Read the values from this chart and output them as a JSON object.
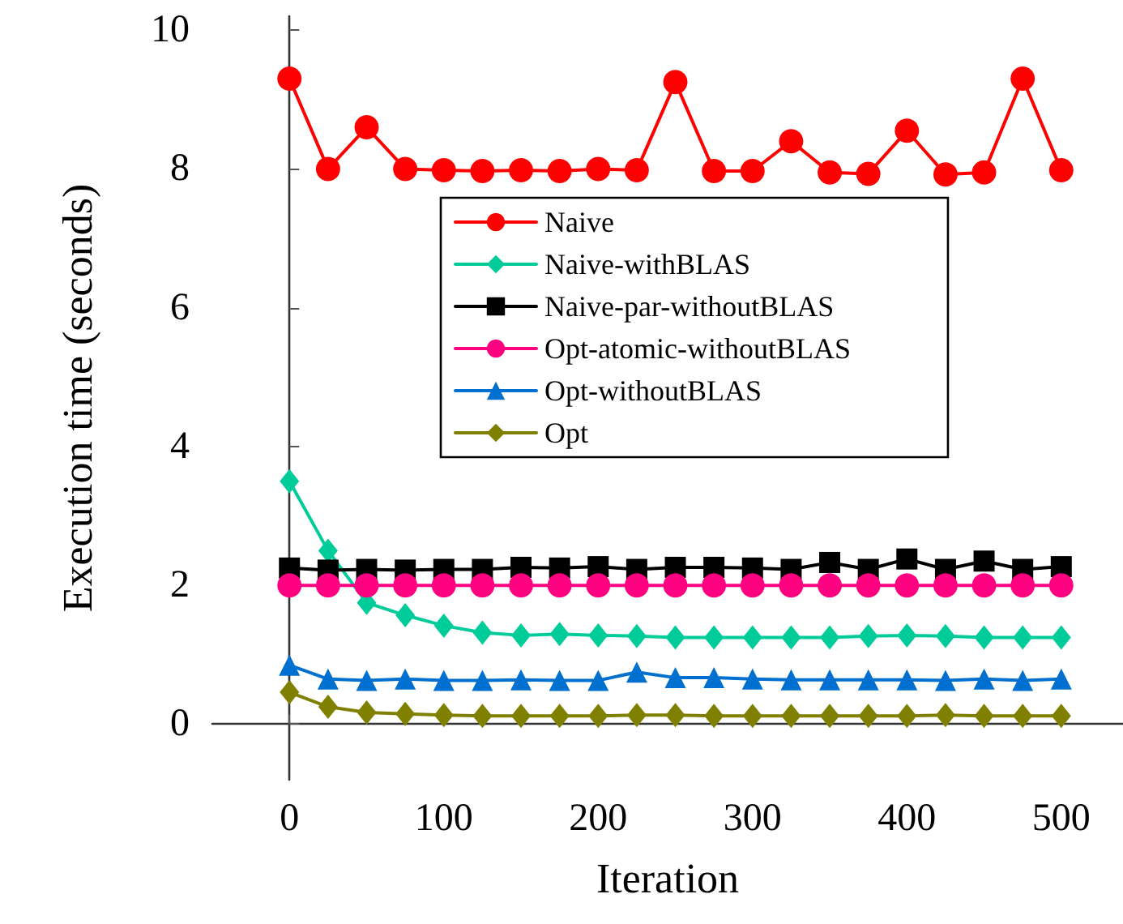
{
  "chart_data": {
    "type": "line",
    "xlabel": "Iteration",
    "ylabel": "Execution time (seconds)",
    "x": [
      0,
      25,
      50,
      75,
      100,
      125,
      150,
      175,
      200,
      225,
      250,
      275,
      300,
      325,
      350,
      375,
      400,
      425,
      450,
      475,
      500
    ],
    "xlim": [
      -50,
      540
    ],
    "xticks": [
      0,
      100,
      200,
      300,
      400,
      500
    ],
    "ylim": [
      -0.8,
      10.2
    ],
    "yticks": [
      0,
      2,
      4,
      6,
      8,
      10
    ],
    "grid": false,
    "legend": "center",
    "series": [
      {
        "name": "Naive",
        "color": "#ff0000",
        "marker": "circle",
        "values": [
          9.3,
          8.0,
          8.6,
          8.0,
          7.98,
          7.97,
          7.98,
          7.97,
          8.0,
          7.98,
          9.25,
          7.97,
          7.97,
          8.4,
          7.95,
          7.93,
          8.55,
          7.92,
          7.95,
          9.3,
          7.98
        ]
      },
      {
        "name": "Naive-withBLAS",
        "color": "#00cc99",
        "marker": "diamond",
        "values": [
          3.5,
          2.5,
          1.75,
          1.57,
          1.42,
          1.32,
          1.28,
          1.3,
          1.28,
          1.27,
          1.25,
          1.25,
          1.25,
          1.25,
          1.25,
          1.27,
          1.28,
          1.27,
          1.25,
          1.25,
          1.25
        ]
      },
      {
        "name": "Naive-par-withoutBLAS",
        "color": "#000000",
        "marker": "square",
        "values": [
          2.25,
          2.22,
          2.23,
          2.22,
          2.23,
          2.23,
          2.26,
          2.25,
          2.27,
          2.23,
          2.26,
          2.26,
          2.25,
          2.23,
          2.33,
          2.23,
          2.38,
          2.23,
          2.35,
          2.23,
          2.27
        ]
      },
      {
        "name": "Opt-atomic-withoutBLAS",
        "color": "#ff0080",
        "marker": "circle",
        "values": [
          2.0,
          2.0,
          2.0,
          2.0,
          2.0,
          2.0,
          2.0,
          2.0,
          2.0,
          2.0,
          2.0,
          2.0,
          2.0,
          2.0,
          2.0,
          2.0,
          2.0,
          2.0,
          2.0,
          2.0,
          2.0
        ]
      },
      {
        "name": "Opt-withoutBLAS",
        "color": "#0070d0",
        "marker": "triangle",
        "values": [
          0.85,
          0.65,
          0.63,
          0.65,
          0.63,
          0.63,
          0.64,
          0.63,
          0.63,
          0.75,
          0.67,
          0.67,
          0.65,
          0.64,
          0.64,
          0.64,
          0.64,
          0.63,
          0.65,
          0.63,
          0.65
        ]
      },
      {
        "name": "Opt",
        "color": "#808000",
        "marker": "diamond",
        "values": [
          0.46,
          0.25,
          0.17,
          0.15,
          0.13,
          0.12,
          0.12,
          0.12,
          0.12,
          0.13,
          0.13,
          0.12,
          0.12,
          0.12,
          0.12,
          0.12,
          0.12,
          0.13,
          0.12,
          0.12,
          0.12
        ]
      }
    ]
  }
}
